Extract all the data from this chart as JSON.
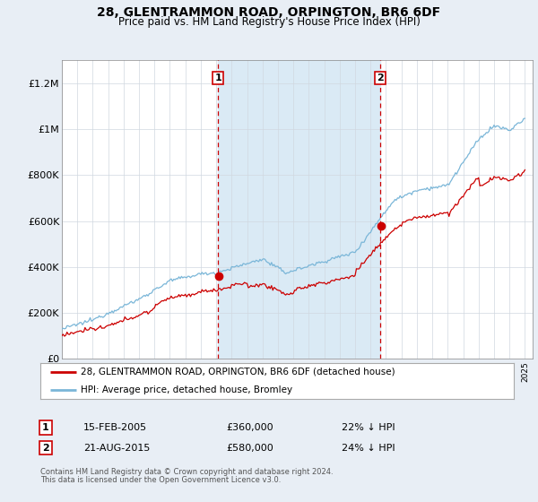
{
  "title": "28, GLENTRAMMON ROAD, ORPINGTON, BR6 6DF",
  "subtitle": "Price paid vs. HM Land Registry's House Price Index (HPI)",
  "legend_line1": "28, GLENTRAMMON ROAD, ORPINGTON, BR6 6DF (detached house)",
  "legend_line2": "HPI: Average price, detached house, Bromley",
  "transaction1_date": "15-FEB-2005",
  "transaction1_price": "£360,000",
  "transaction1_hpi": "22% ↓ HPI",
  "transaction2_date": "21-AUG-2015",
  "transaction2_price": "£580,000",
  "transaction2_hpi": "24% ↓ HPI",
  "footnote1": "Contains HM Land Registry data © Crown copyright and database right 2024.",
  "footnote2": "This data is licensed under the Open Government Licence v3.0.",
  "hpi_color": "#7ab6d8",
  "price_color": "#cc0000",
  "vline_color": "#cc0000",
  "shade_color": "#daeaf5",
  "background_color": "#e8eef5",
  "plot_bg_color": "#ffffff",
  "legend_border_color": "#aaaaaa",
  "ylim": [
    0,
    1300000
  ],
  "yticks": [
    0,
    200000,
    400000,
    600000,
    800000,
    1000000,
    1200000
  ],
  "ytick_labels": [
    "£0",
    "£200K",
    "£400K",
    "£600K",
    "£800K",
    "£1M",
    "£1.2M"
  ],
  "x_start_year": 1995,
  "x_end_year": 2025,
  "transaction1_year": 2005.125,
  "transaction2_year": 2015.625,
  "transaction1_price_val": 360000,
  "transaction2_price_val": 580000
}
